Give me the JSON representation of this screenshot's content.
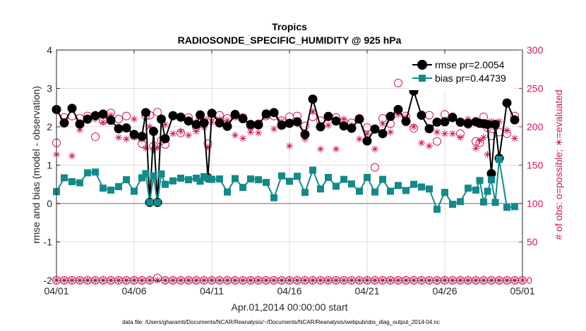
{
  "chart_data": {
    "type": "scatter",
    "title": "Tropics",
    "subtitle": "RADIOSONDE_SPECIFIC_HUMIDITY @ 925 hPa",
    "xlabel": "Apr.01,2014 00:00:00 start",
    "ylabel": "rmse and bias (model - observation)",
    "y2label": "# of obs: o=possible; ∗=evaluated",
    "footnote": "data file: /Users/gharamti/Documents/NCAR/Reanalysis/~/Documents/NCAR/Reanalysis/webpub/obs_diag_output_2014-04.nc",
    "xlim": [
      0,
      30
    ],
    "ylim": [
      -2,
      4
    ],
    "y2lim": [
      0,
      300
    ],
    "xticks": [
      0,
      5,
      10,
      15,
      20,
      25,
      30
    ],
    "xtick_labels": [
      "04/01",
      "04/06",
      "04/11",
      "04/16",
      "04/21",
      "04/26",
      "05/01"
    ],
    "yticks": [
      -2,
      -1,
      0,
      1,
      2,
      3,
      4
    ],
    "y2ticks": [
      0,
      50,
      100,
      150,
      200,
      250,
      300
    ],
    "legend_position": "top-right",
    "colors": {
      "rmse": "#000000",
      "bias": "#138a8a",
      "obs": "#d4145a",
      "zero": "#b3b3b3",
      "grid": "#dcdcdc"
    },
    "series": [
      {
        "name": "rmse pr=2.0054",
        "key": "rmse",
        "x": [
          0,
          0.5,
          1,
          1.5,
          2,
          2.5,
          3,
          3.5,
          4,
          4.5,
          5,
          5.5,
          5.75,
          6,
          6.25,
          6.5,
          6.75,
          7,
          7.5,
          8,
          8.5,
          9,
          9.25,
          9.5,
          9.75,
          10,
          10.5,
          11,
          11.5,
          12,
          12.5,
          13,
          13.5,
          14,
          14.5,
          15,
          15.5,
          16,
          16.5,
          17,
          17.5,
          18,
          18.5,
          19,
          19.5,
          20,
          20.5,
          21,
          21.5,
          22,
          22.5,
          23,
          23.5,
          24,
          24.5,
          25,
          25.5,
          26,
          26.5,
          27,
          27.25,
          27.5,
          27.75,
          28,
          28.25,
          28.5,
          29,
          29.5
        ],
        "y": [
          2.45,
          2.1,
          2.48,
          2.07,
          2.2,
          2.29,
          2.33,
          2.17,
          1.95,
          1.97,
          1.8,
          1.75,
          2.37,
          0.03,
          1.88,
          0.03,
          2.2,
          1.69,
          2.29,
          2.25,
          2.15,
          2.06,
          2.31,
          2.1,
          0.67,
          2.35,
          2.1,
          2.01,
          2.32,
          2.21,
          2.06,
          2.05,
          2.33,
          2.37,
          2.04,
          2.09,
          2.13,
          1.8,
          2.72,
          2.0,
          2.27,
          2.15,
          2.02,
          1.96,
          2.2,
          1.63,
          1.94,
          1.82,
          2.27,
          2.45,
          2.14,
          2.93,
          2.3,
          1.95,
          2.12,
          2.13,
          2.24,
          2.12,
          2.09,
          2.13,
          2.09,
          2.08,
          2.06,
          0.78,
          2.06,
          1.18,
          2.62,
          2.18
        ]
      },
      {
        "name": "bias pr=0.44739",
        "key": "bias",
        "x": [
          0,
          0.5,
          1,
          1.5,
          2,
          2.5,
          3,
          3.5,
          4,
          4.5,
          5,
          5.5,
          5.75,
          6,
          6.25,
          6.5,
          6.75,
          7,
          7.5,
          8,
          8.5,
          9,
          9.25,
          9.5,
          9.75,
          10,
          10.5,
          11,
          11.5,
          12,
          12.5,
          13,
          13.5,
          14,
          14.5,
          15,
          15.5,
          16,
          16.5,
          17,
          17.5,
          18,
          18.5,
          19,
          19.5,
          20,
          20.5,
          21,
          21.5,
          22,
          22.5,
          23,
          23.5,
          24,
          24.5,
          25,
          25.5,
          26,
          26.5,
          27,
          27.25,
          27.5,
          27.75,
          28,
          28.25,
          28.5,
          29,
          29.5
        ],
        "y": [
          0.31,
          0.67,
          0.57,
          0.54,
          0.8,
          0.82,
          0.4,
          0.35,
          0.44,
          0.62,
          0.32,
          0.67,
          0.78,
          0.03,
          0.72,
          0.03,
          0.77,
          0.5,
          0.59,
          0.66,
          0.62,
          0.66,
          0.58,
          0.7,
          0.66,
          0.63,
          0.64,
          0.3,
          0.65,
          0.42,
          0.64,
          0.62,
          0.55,
          0.15,
          0.72,
          0.58,
          0.71,
          0.29,
          0.87,
          0.38,
          0.68,
          0.45,
          0.63,
          0.51,
          0.32,
          0.68,
          0.3,
          0.63,
          0.32,
          0.47,
          0.34,
          0.5,
          0.43,
          0.38,
          -0.15,
          0.29,
          -0.02,
          0.05,
          0.4,
          0.35,
          0.6,
          0.04,
          0.32,
          0.62,
          0.03,
          1.15,
          -0.1,
          -0.08
        ]
      },
      {
        "name": "possible",
        "key": "possible",
        "axis": "right",
        "x": [
          0,
          0.5,
          1,
          1.5,
          2,
          2.5,
          3,
          3.5,
          4,
          4.5,
          5,
          5.5,
          5.75,
          6,
          6.25,
          6.5,
          6.75,
          7,
          7.5,
          8,
          8.5,
          9,
          9.25,
          9.5,
          9.75,
          10,
          10.5,
          11,
          11.5,
          12,
          12.5,
          13,
          13.5,
          14,
          14.5,
          15,
          15.5,
          16,
          16.5,
          17,
          17.5,
          18,
          18.5,
          19,
          19.5,
          20,
          20.5,
          21,
          21.5,
          22,
          22.5,
          23,
          23.5,
          24,
          24.5,
          25,
          25.5,
          26,
          26.5,
          27,
          27.25,
          27.5,
          27.75,
          28,
          28.25,
          28.5,
          29,
          29.5
        ],
        "y": [
          179,
          212,
          214,
          211,
          214,
          187,
          208,
          218,
          210,
          214,
          188,
          178,
          214,
          215,
          175,
          219,
          182,
          177,
          214,
          192,
          212,
          200,
          210,
          208,
          178,
          214,
          215,
          211,
          214,
          212,
          201,
          204,
          214,
          214,
          208,
          213,
          214,
          201,
          213,
          208,
          213,
          212,
          206,
          205,
          211,
          199,
          147,
          211,
          204,
          257,
          214,
          198,
          264,
          215,
          181,
          216,
          213,
          191,
          203,
          181,
          179,
          213,
          199,
          188,
          203,
          193,
          191,
          214
        ]
      },
      {
        "name": "evaluated",
        "key": "evaluated",
        "axis": "right",
        "x": [
          0,
          0.5,
          1,
          1.5,
          2,
          2.5,
          3,
          3.5,
          4,
          4.5,
          5,
          5.5,
          5.75,
          6,
          6.25,
          6.5,
          6.75,
          7,
          7.5,
          8,
          8.5,
          9,
          9.25,
          9.5,
          9.75,
          10,
          10.5,
          11,
          11.5,
          12,
          12.5,
          13,
          13.5,
          14,
          14.5,
          15,
          15.5,
          16,
          16.5,
          17,
          17.5,
          18,
          18.5,
          19,
          19.5,
          20,
          20.5,
          21,
          21.5,
          22,
          22.5,
          23,
          23.5,
          24,
          24.5,
          25,
          25.5,
          26,
          26.5,
          27,
          27.25,
          27.5,
          27.75,
          28,
          28.25,
          28.5,
          29,
          29.5
        ],
        "y": [
          164,
          203,
          162,
          196,
          210,
          210,
          206,
          215,
          186,
          184,
          210,
          183,
          172,
          200,
          170,
          173,
          211,
          203,
          191,
          194,
          189,
          194,
          203,
          199,
          173,
          206,
          210,
          208,
          189,
          185,
          193,
          192,
          219,
          197,
          207,
          175,
          204,
          184,
          220,
          171,
          202,
          171,
          210,
          202,
          184,
          191,
          171,
          204,
          193,
          216,
          212,
          200,
          179,
          175,
          193,
          191,
          191,
          186,
          210,
          172,
          182,
          186,
          164,
          207,
          199,
          207,
          195,
          185
        ]
      },
      {
        "name": "possible-zero",
        "key": "possible_zero",
        "axis": "right",
        "x": [
          0,
          0.5,
          1,
          1.5,
          2,
          2.5,
          3,
          3.5,
          4,
          4.5,
          5,
          5.5,
          6,
          6.5,
          7,
          7.5,
          8,
          8.5,
          9,
          9.5,
          10,
          10.5,
          11,
          11.5,
          12,
          12.5,
          13,
          13.5,
          14,
          14.5,
          15,
          15.5,
          16,
          16.5,
          17,
          17.5,
          18,
          18.5,
          19,
          19.5,
          20,
          20.5,
          21,
          21.5,
          22,
          22.5,
          23,
          23.5,
          24,
          24.5,
          25,
          25.5,
          26,
          26.5,
          27,
          27.5,
          28,
          28.5,
          29,
          29.5,
          30
        ],
        "y": [
          0,
          0,
          0,
          0,
          0,
          0,
          0,
          0,
          0,
          0,
          0,
          0,
          0,
          3,
          0,
          0,
          0,
          0,
          0,
          0,
          0,
          0,
          0,
          0,
          0,
          0,
          0,
          0,
          0,
          0,
          0,
          0,
          0,
          0,
          0,
          0,
          0,
          0,
          0,
          0,
          0,
          0,
          0,
          0,
          0,
          0,
          0,
          0,
          0,
          0,
          0,
          0,
          0,
          0,
          0,
          0,
          0,
          0,
          0,
          0,
          0
        ]
      },
      {
        "name": "evaluated-zero",
        "key": "evaluated_zero",
        "axis": "right",
        "x": [
          0,
          0.5,
          1,
          1.5,
          2,
          2.5,
          3,
          3.5,
          4,
          4.5,
          5,
          5.5,
          6,
          6.5,
          7,
          7.5,
          8,
          8.5,
          9,
          9.5,
          10,
          10.5,
          11,
          11.5,
          12,
          12.5,
          13,
          13.5,
          14,
          14.5,
          15,
          15.5,
          16,
          16.5,
          17,
          17.5,
          18,
          18.5,
          19,
          19.5,
          20,
          20.5,
          21,
          21.5,
          22,
          22.5,
          23,
          23.5,
          24,
          24.5,
          25,
          25.5,
          26,
          26.5,
          27,
          27.5,
          28,
          28.5,
          29,
          29.5,
          30
        ],
        "y": [
          0,
          0,
          0,
          0,
          0,
          0,
          0,
          0,
          0,
          0,
          0,
          0,
          0,
          0,
          0,
          0,
          0,
          0,
          0,
          0,
          0,
          0,
          0,
          0,
          0,
          0,
          0,
          0,
          0,
          0,
          0,
          0,
          0,
          0,
          0,
          0,
          0,
          0,
          0,
          0,
          0,
          0,
          0,
          0,
          0,
          0,
          0,
          0,
          0,
          0,
          0,
          0,
          0,
          0,
          0,
          0,
          0,
          0,
          0,
          0,
          0
        ]
      }
    ]
  }
}
